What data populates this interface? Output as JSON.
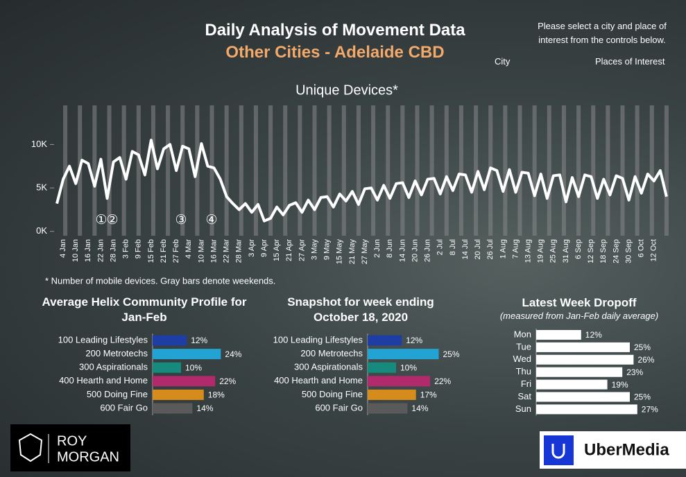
{
  "header": {
    "title": "Daily Analysis of Movement Data",
    "subtitle": "Other Cities - Adelaide CBD"
  },
  "controls": {
    "instruction": "Please select a city and place of interest from the controls below.",
    "city_label": "City",
    "places_label": "Places of Interest"
  },
  "logos": {
    "roy": "ROY",
    "morgan": "MORGAN",
    "ubermedia": "UberMedia"
  },
  "chart_data": [
    {
      "type": "line",
      "title": "Unique Devices*",
      "note": "* Number of mobile devices. Gray bars denote weekends.",
      "color": "#ffffff",
      "annotations": [
        "①",
        "②",
        "③",
        "④"
      ],
      "categories": [
        null,
        "4 Jan",
        null,
        "10 Jan",
        null,
        "16 Jan",
        null,
        "22 Jan",
        null,
        "28 Jan",
        null,
        "3 Feb",
        null,
        "9 Feb",
        null,
        "15 Feb",
        null,
        "21 Feb",
        null,
        "27 Feb",
        null,
        "4 Mar",
        null,
        "10 Mar",
        null,
        "16 Mar",
        null,
        "22 Mar",
        null,
        "28 Mar",
        null,
        "3 Apr",
        null,
        "9 Apr",
        null,
        "15 Apr",
        null,
        "21 Apr",
        null,
        "27 Apr",
        null,
        "3 May",
        null,
        "9 May",
        null,
        "15 May",
        null,
        "21 May",
        null,
        "27 May",
        null,
        "2 Jun",
        null,
        "8 Jun",
        null,
        "14 Jun",
        null,
        "20 Jun",
        null,
        "26 Jun",
        null,
        "2 Jul",
        null,
        "8 Jul",
        null,
        "14 Jul",
        null,
        "20 Jul",
        null,
        "26 Jul",
        null,
        "1 Aug",
        null,
        "7 Aug",
        null,
        "13 Aug",
        null,
        "19 Aug",
        null,
        "25 Aug",
        null,
        "31 Aug",
        null,
        "6 Sep",
        null,
        "12 Sep",
        null,
        "18 Sep",
        null,
        "24 Sep",
        null,
        "30 Sep",
        null,
        "6 Oct",
        null,
        "12 Oct",
        null,
        null
      ],
      "values": [
        3200,
        6000,
        7500,
        5500,
        8200,
        7800,
        5200,
        8300,
        3800,
        8000,
        8500,
        6000,
        9200,
        8800,
        6500,
        10500,
        7200,
        9500,
        10000,
        7000,
        9800,
        9500,
        6300,
        10100,
        7500,
        7300,
        6000,
        4000,
        3200,
        2500,
        3200,
        2200,
        3100,
        1200,
        1500,
        2800,
        1900,
        3000,
        3300,
        2200,
        3600,
        2500,
        3900,
        4000,
        2800,
        4300,
        3500,
        4600,
        3100,
        4900,
        5000,
        3600,
        5300,
        3800,
        5500,
        5600,
        3900,
        5800,
        4200,
        6000,
        6100,
        4300,
        6300,
        4700,
        6600,
        6500,
        4500,
        6900,
        4800,
        7300,
        7000,
        4600,
        7100,
        4500,
        6800,
        6700,
        4100,
        6600,
        3800,
        6400,
        6500,
        3400,
        6200,
        4000,
        6500,
        6300,
        3800,
        6000,
        4200,
        6400,
        6100,
        3600,
        6300,
        4400,
        6600,
        5800,
        7000,
        4000
      ],
      "ylim": [
        -500,
        14500
      ],
      "yticks": [
        {
          "value": 0,
          "label": "0K"
        },
        {
          "value": 5000,
          "label": "5K"
        },
        {
          "value": 10000,
          "label": "10K"
        }
      ]
    },
    {
      "type": "bar",
      "orientation": "horizontal",
      "title": "Average Helix Community Profile for Jan-Feb",
      "categories": [
        "100 Leading Lifestyles",
        "200 Metrotechs",
        "300 Aspirationals",
        "400 Hearth and Home",
        "500 Doing Fine",
        "600 Fair Go"
      ],
      "values": [
        12,
        24,
        10,
        22,
        18,
        14
      ],
      "value_labels": [
        "12%",
        "24%",
        "10%",
        "22%",
        "18%",
        "14%"
      ],
      "colors": [
        "#1e3ea6",
        "#22a3d3",
        "#168a7c",
        "#b02a6c",
        "#d58c1c",
        "#5a5a5a"
      ],
      "xlim": [
        0,
        30
      ]
    },
    {
      "type": "bar",
      "orientation": "horizontal",
      "title": "Snapshot for week ending October 18, 2020",
      "categories": [
        "100 Leading Lifestyles",
        "200 Metrotechs",
        "300 Aspirationals",
        "400 Hearth and Home",
        "500 Doing Fine",
        "600 Fair Go"
      ],
      "values": [
        12,
        25,
        10,
        22,
        17,
        14
      ],
      "value_labels": [
        "12%",
        "25%",
        "10%",
        "22%",
        "17%",
        "14%"
      ],
      "colors": [
        "#1e3ea6",
        "#22a3d3",
        "#168a7c",
        "#b02a6c",
        "#d58c1c",
        "#5a5a5a"
      ],
      "xlim": [
        0,
        30
      ]
    },
    {
      "type": "bar",
      "orientation": "horizontal",
      "title": "Latest Week Dropoff",
      "subtitle": "(measured from Jan-Feb daily average)",
      "categories": [
        "Mon",
        "Tue",
        "Wed",
        "Thu",
        "Fri",
        "Sat",
        "Sun"
      ],
      "values": [
        12,
        25,
        26,
        23,
        19,
        25,
        27
      ],
      "value_labels": [
        "12%",
        "25%",
        "26%",
        "23%",
        "19%",
        "25%",
        "27%"
      ],
      "color": "#ffffff",
      "xlim": [
        0,
        30
      ]
    }
  ]
}
